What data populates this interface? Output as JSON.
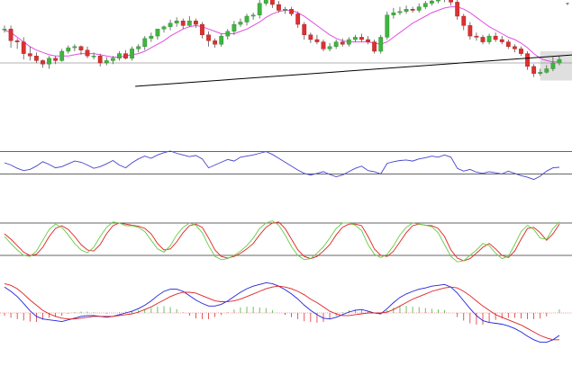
{
  "chart_data": [
    {
      "panel": "price",
      "type": "candlestick",
      "title": "",
      "ylim": [
        0,
        100
      ],
      "colors": {
        "up": "#3fb43f",
        "down": "#dd3030",
        "wick": "#555555",
        "ma": "#e050e0",
        "trendline": "#000000",
        "hline": "#999999",
        "highlight": "#d9d9d9"
      },
      "ohlc": [
        [
          79,
          79,
          76,
          82
        ],
        [
          79,
          69,
          63,
          82
        ],
        [
          69,
          68,
          62,
          71
        ],
        [
          68,
          58,
          53,
          72
        ],
        [
          58,
          56,
          52,
          64
        ],
        [
          56,
          52,
          50,
          59
        ],
        [
          52,
          49,
          46,
          53
        ],
        [
          49,
          54,
          45,
          56
        ],
        [
          54,
          52,
          49,
          56
        ],
        [
          52,
          60,
          51,
          62
        ],
        [
          60,
          63,
          58,
          65
        ],
        [
          63,
          64,
          60,
          66
        ],
        [
          64,
          61,
          57,
          65
        ],
        [
          61,
          56,
          54,
          64
        ],
        [
          56,
          56,
          53,
          59
        ],
        [
          56,
          50,
          47,
          58
        ],
        [
          50,
          52,
          48,
          55
        ],
        [
          52,
          54,
          49,
          56
        ],
        [
          54,
          58,
          52,
          60
        ],
        [
          58,
          54,
          53,
          61
        ],
        [
          54,
          62,
          52,
          64
        ],
        [
          62,
          64,
          59,
          66
        ],
        [
          64,
          71,
          61,
          73
        ],
        [
          71,
          73,
          68,
          76
        ],
        [
          73,
          79,
          70,
          79
        ],
        [
          79,
          81,
          76,
          82
        ],
        [
          81,
          84,
          78,
          87
        ],
        [
          84,
          86,
          81,
          89
        ],
        [
          86,
          82,
          79,
          88
        ],
        [
          82,
          86,
          81,
          90
        ],
        [
          86,
          83,
          80,
          88
        ],
        [
          83,
          74,
          71,
          85
        ],
        [
          74,
          69,
          64,
          77
        ],
        [
          69,
          66,
          63,
          71
        ],
        [
          66,
          73,
          64,
          75
        ],
        [
          73,
          77,
          70,
          79
        ],
        [
          77,
          83,
          74,
          86
        ],
        [
          83,
          85,
          81,
          88
        ],
        [
          85,
          90,
          82,
          92
        ],
        [
          90,
          91,
          87,
          93
        ],
        [
          91,
          101,
          88,
          105
        ],
        [
          101,
          107,
          99,
          109
        ],
        [
          107,
          100,
          97,
          111
        ],
        [
          100,
          95,
          93,
          103
        ],
        [
          95,
          96,
          92,
          98
        ],
        [
          96,
          92,
          90,
          98
        ],
        [
          92,
          83,
          80,
          94
        ],
        [
          83,
          74,
          70,
          85
        ],
        [
          74,
          70,
          67,
          76
        ],
        [
          70,
          68,
          66,
          74
        ],
        [
          68,
          62,
          60,
          70
        ],
        [
          62,
          64,
          60,
          67
        ],
        [
          64,
          68,
          62,
          70
        ],
        [
          68,
          66,
          64,
          71
        ],
        [
          66,
          70,
          64,
          72
        ],
        [
          70,
          72,
          68,
          74
        ],
        [
          72,
          70,
          68,
          75
        ],
        [
          70,
          68,
          66,
          73
        ],
        [
          68,
          60,
          58,
          70
        ],
        [
          60,
          72,
          58,
          74
        ],
        [
          72,
          91,
          70,
          94
        ],
        [
          91,
          93,
          88,
          97
        ],
        [
          93,
          94,
          91,
          98
        ],
        [
          94,
          96,
          92,
          99
        ],
        [
          96,
          95,
          93,
          98
        ],
        [
          95,
          98,
          93,
          101
        ],
        [
          98,
          101,
          96,
          103
        ],
        [
          101,
          103,
          99,
          106
        ],
        [
          103,
          104,
          101,
          107
        ],
        [
          104,
          108,
          102,
          110
        ],
        [
          108,
          102,
          99,
          110
        ],
        [
          102,
          90,
          87,
          104
        ],
        [
          90,
          82,
          78,
          92
        ],
        [
          82,
          73,
          70,
          85
        ],
        [
          73,
          72,
          69,
          76
        ],
        [
          72,
          68,
          66,
          74
        ],
        [
          68,
          73,
          66,
          75
        ],
        [
          73,
          70,
          68,
          76
        ],
        [
          70,
          68,
          66,
          73
        ],
        [
          68,
          64,
          62,
          70
        ],
        [
          64,
          62,
          59,
          66
        ],
        [
          62,
          58,
          56,
          64
        ],
        [
          58,
          47,
          44,
          60
        ],
        [
          47,
          41,
          38,
          49
        ],
        [
          41,
          42,
          39,
          45
        ],
        [
          42,
          45,
          41,
          48
        ],
        [
          45,
          50,
          43,
          55
        ],
        [
          50,
          53,
          48,
          56
        ]
      ],
      "moving_average": [
        78,
        76,
        72,
        68,
        64,
        61,
        59,
        57,
        56,
        56,
        56,
        57,
        58,
        58,
        58,
        57,
        56,
        55,
        55,
        56,
        57,
        58,
        60,
        63,
        66,
        69,
        73,
        76,
        79,
        81,
        82,
        81,
        79,
        77,
        75,
        75,
        75,
        77,
        79,
        82,
        85,
        89,
        92,
        94,
        95,
        95,
        93,
        90,
        86,
        82,
        78,
        74,
        71,
        69,
        68,
        68,
        68,
        68,
        67,
        66,
        68,
        72,
        76,
        80,
        84,
        87,
        90,
        93,
        95,
        97,
        98,
        98,
        96,
        93,
        89,
        85,
        81,
        78,
        75,
        72,
        70,
        67,
        63,
        58,
        54,
        52,
        51,
        51
      ],
      "reference_line": 50,
      "trendline": [
        [
          20.5,
          30
        ],
        [
          92,
          58
        ]
      ],
      "highlight_box": {
        "x": [
          84,
          89
        ],
        "y": [
          35,
          60
        ]
      }
    },
    {
      "panel": "oscillator-1",
      "type": "line",
      "title": "",
      "ylim": [
        0,
        100
      ],
      "levels": [
        70,
        30
      ],
      "series": [
        {
          "color": "#4444cc",
          "values": [
            50,
            46,
            40,
            36,
            38,
            44,
            52,
            47,
            41,
            43,
            48,
            53,
            51,
            46,
            40,
            43,
            48,
            54,
            46,
            41,
            50,
            57,
            62,
            58,
            64,
            68,
            71,
            67,
            64,
            61,
            63,
            57,
            41,
            46,
            51,
            56,
            53,
            60,
            62,
            64,
            67,
            70,
            65,
            58,
            51,
            44,
            37,
            31,
            28,
            31,
            34,
            29,
            25,
            28,
            34,
            40,
            44,
            36,
            34,
            30,
            49,
            52,
            54,
            55,
            53,
            57,
            59,
            62,
            60,
            64,
            60,
            40,
            35,
            38,
            33,
            31,
            34,
            32,
            30,
            35,
            31,
            27,
            24,
            20,
            26,
            35,
            41,
            42
          ]
        }
      ]
    },
    {
      "panel": "oscillator-2",
      "type": "line",
      "title": "",
      "ylim": [
        0,
        100
      ],
      "levels": [
        80,
        20
      ],
      "series": [
        {
          "color": "#dd2222",
          "values": [
            60,
            50,
            38,
            26,
            20,
            22,
            35,
            55,
            70,
            75,
            68,
            55,
            40,
            30,
            28,
            40,
            60,
            75,
            80,
            78,
            76,
            74,
            70,
            60,
            42,
            30,
            32,
            45,
            62,
            75,
            78,
            72,
            52,
            30,
            18,
            15,
            18,
            24,
            32,
            42,
            58,
            72,
            80,
            82,
            70,
            50,
            30,
            18,
            14,
            18,
            28,
            40,
            58,
            72,
            78,
            78,
            75,
            55,
            32,
            20,
            18,
            28,
            45,
            62,
            75,
            78,
            76,
            75,
            70,
            55,
            30,
            15,
            10,
            14,
            24,
            35,
            42,
            32,
            20,
            16,
            28,
            50,
            70,
            72,
            62,
            48,
            60,
            78
          ]
        },
        {
          "color": "#66cc44",
          "values": [
            55,
            42,
            30,
            20,
            18,
            28,
            48,
            68,
            78,
            72,
            58,
            42,
            30,
            25,
            35,
            55,
            72,
            82,
            80,
            75,
            75,
            72,
            64,
            48,
            32,
            26,
            38,
            58,
            72,
            80,
            76,
            62,
            38,
            18,
            12,
            14,
            20,
            28,
            38,
            52,
            70,
            80,
            84,
            76,
            58,
            36,
            20,
            12,
            14,
            24,
            36,
            52,
            70,
            80,
            80,
            76,
            66,
            40,
            22,
            16,
            22,
            38,
            58,
            72,
            80,
            78,
            76,
            73,
            62,
            40,
            18,
            8,
            10,
            20,
            30,
            42,
            38,
            24,
            14,
            18,
            40,
            64,
            76,
            68,
            52,
            50,
            70,
            82
          ]
        }
      ]
    },
    {
      "panel": "macd",
      "type": "line",
      "title": "",
      "ylim": [
        -100,
        100
      ],
      "zero_line": 0,
      "series": [
        {
          "color": "#2222dd",
          "values": [
            60,
            50,
            38,
            22,
            5,
            -8,
            -14,
            -16,
            -18,
            -20,
            -16,
            -12,
            -8,
            -6,
            -6,
            -8,
            -10,
            -8,
            -4,
            0,
            4,
            10,
            18,
            28,
            40,
            50,
            55,
            55,
            50,
            40,
            30,
            22,
            16,
            16,
            20,
            28,
            38,
            48,
            56,
            62,
            66,
            70,
            68,
            62,
            54,
            44,
            32,
            18,
            6,
            -4,
            -12,
            -14,
            -10,
            -4,
            2,
            6,
            8,
            4,
            0,
            -2,
            10,
            24,
            36,
            44,
            50,
            55,
            58,
            62,
            64,
            66,
            60,
            46,
            28,
            10,
            -6,
            -18,
            -22,
            -24,
            -26,
            -30,
            -36,
            -44,
            -54,
            -62,
            -68,
            -68,
            -62,
            -52
          ]
        },
        {
          "color": "#dd2222",
          "values": [
            68,
            64,
            56,
            44,
            30,
            18,
            6,
            -2,
            -8,
            -12,
            -14,
            -14,
            -12,
            -10,
            -8,
            -8,
            -8,
            -8,
            -6,
            -4,
            -2,
            2,
            8,
            14,
            22,
            30,
            38,
            44,
            48,
            48,
            46,
            40,
            34,
            28,
            26,
            26,
            28,
            32,
            38,
            44,
            50,
            56,
            60,
            62,
            60,
            56,
            50,
            42,
            32,
            24,
            14,
            4,
            -2,
            -6,
            -6,
            -4,
            -2,
            0,
            0,
            0,
            2,
            8,
            16,
            24,
            32,
            38,
            44,
            50,
            54,
            58,
            60,
            58,
            50,
            40,
            28,
            16,
            6,
            -4,
            -10,
            -16,
            -22,
            -28,
            -36,
            -44,
            -52,
            -58,
            -62,
            -62
          ]
        }
      ]
    }
  ]
}
